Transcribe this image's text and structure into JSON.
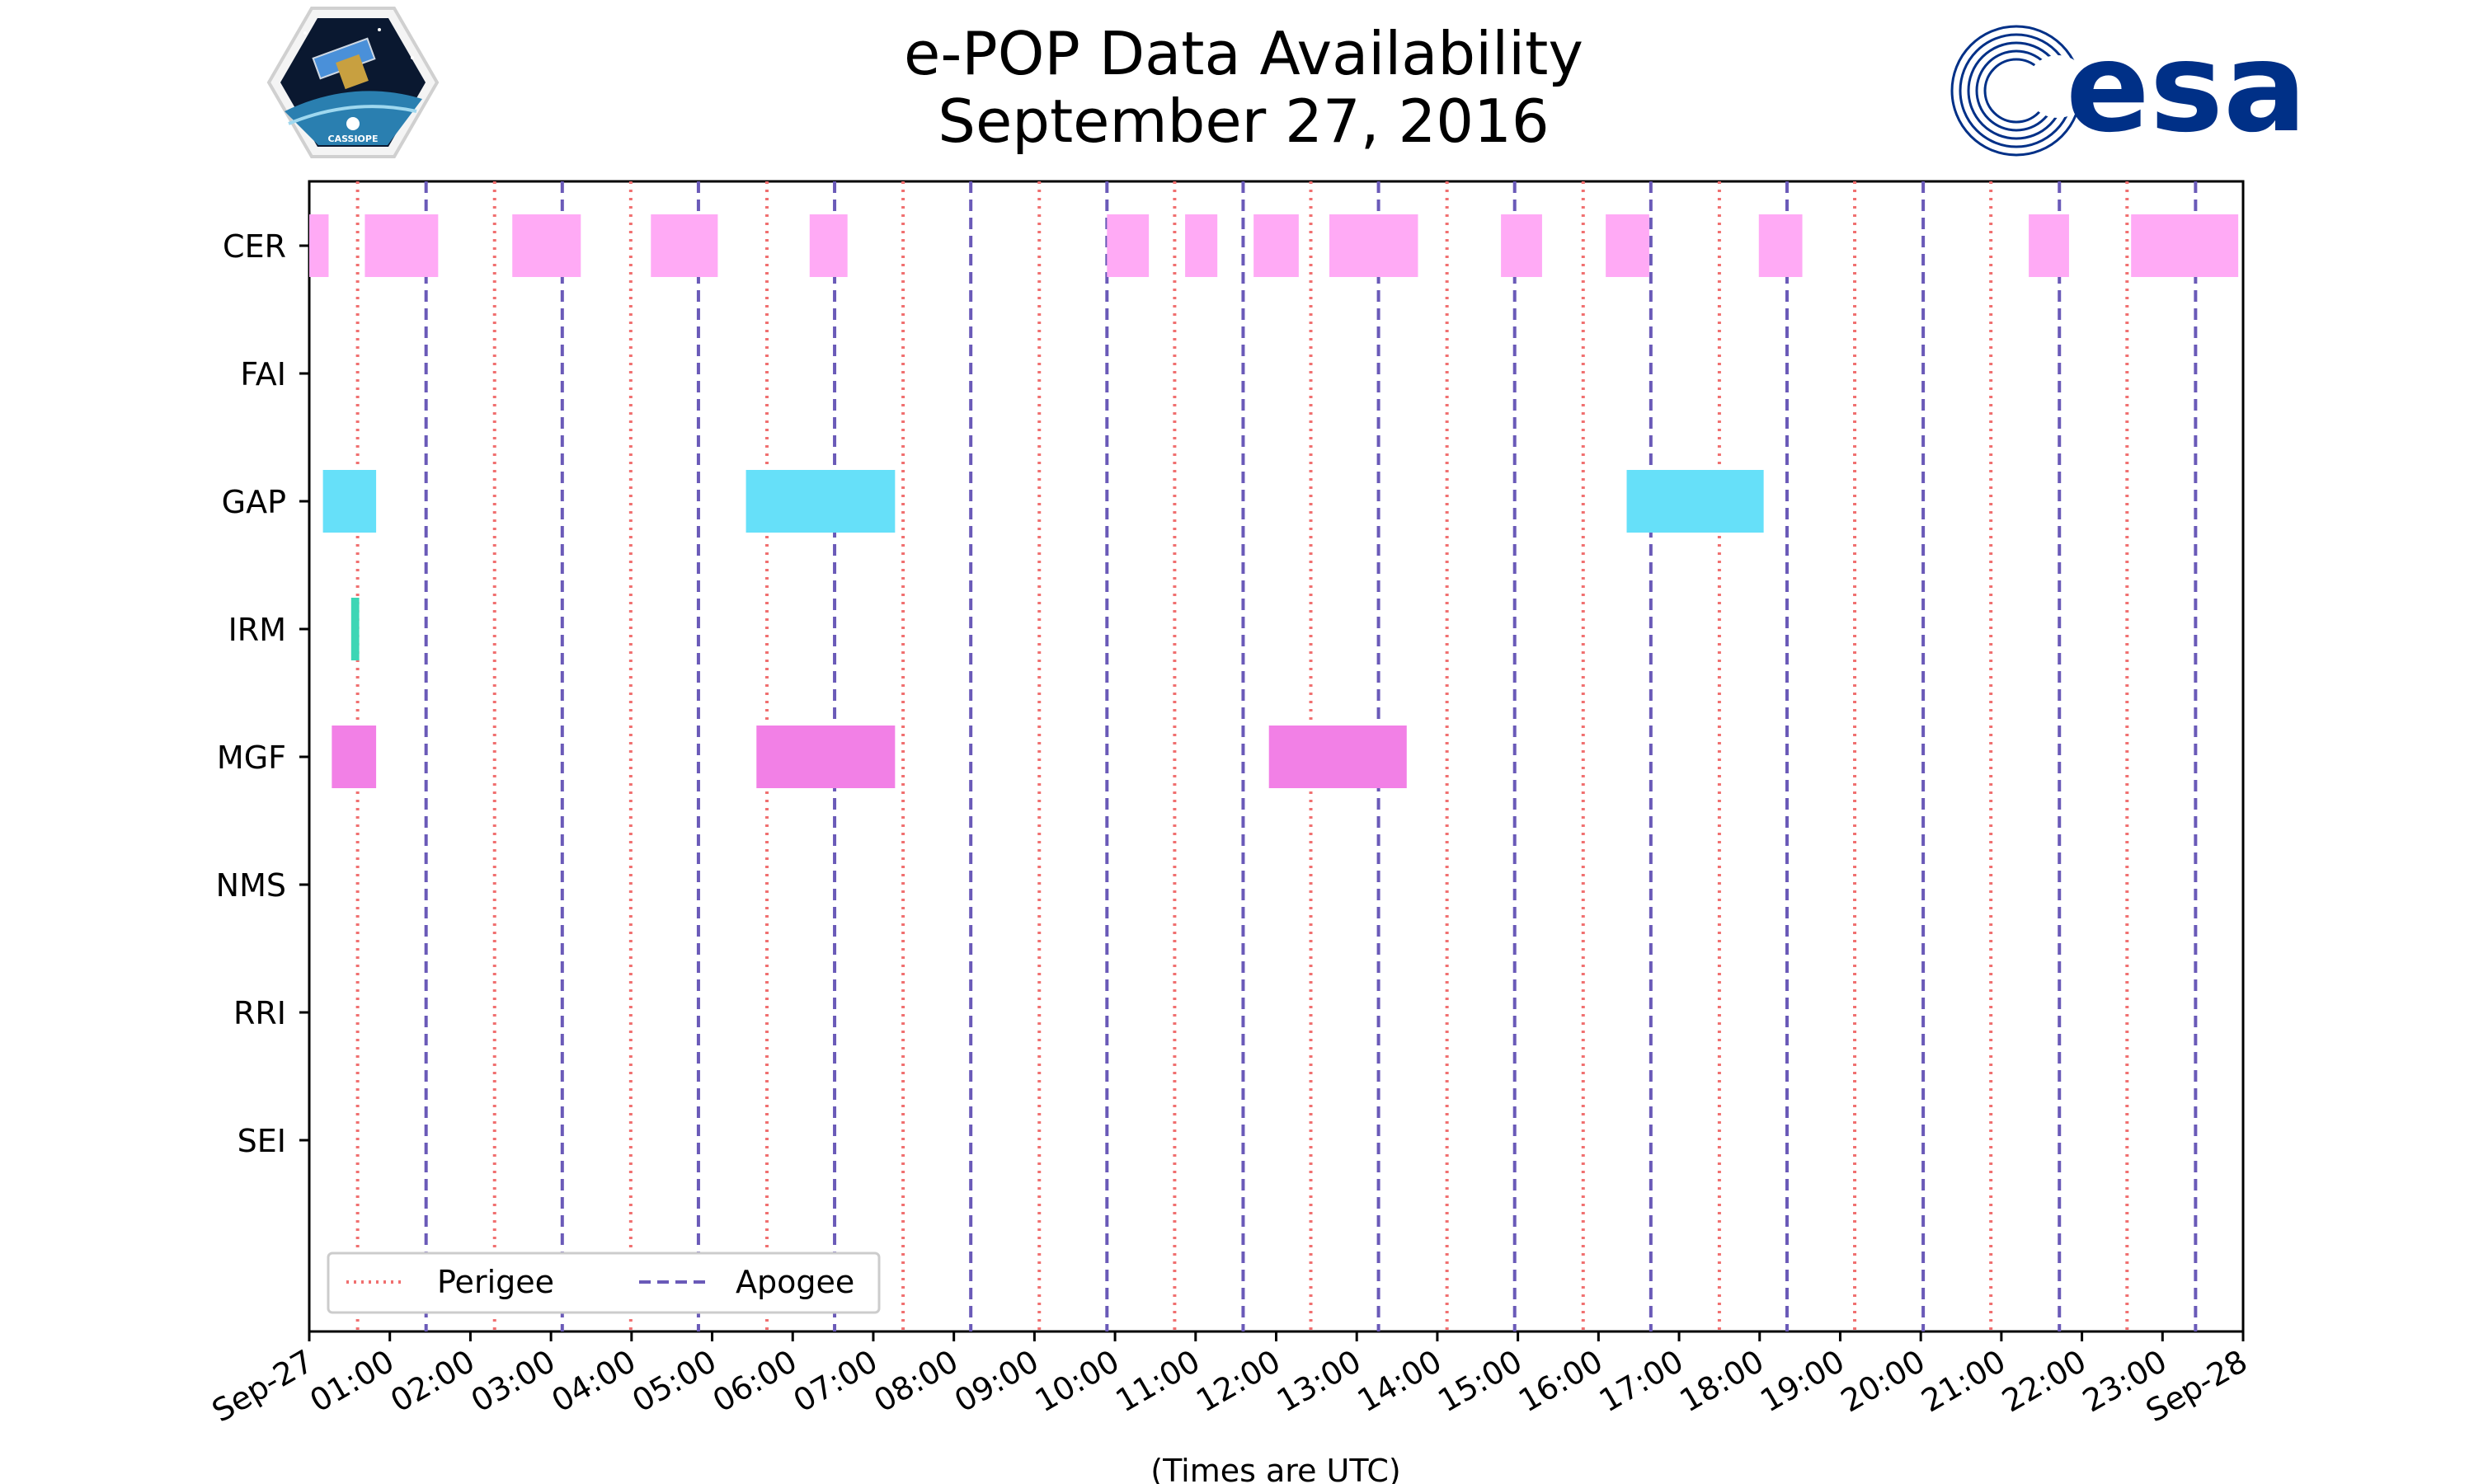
{
  "chart_data": {
    "type": "timeline",
    "title": [
      "e-POP Data Availability",
      "September 27, 2016"
    ],
    "xlabel": "(Times are UTC)",
    "x_unit": "hours (UTC)",
    "xlim": [
      0,
      24
    ],
    "x_ticks": [
      {
        "value": 0,
        "label": "Sep-27"
      },
      {
        "value": 1,
        "label": "01:00"
      },
      {
        "value": 2,
        "label": "02:00"
      },
      {
        "value": 3,
        "label": "03:00"
      },
      {
        "value": 4,
        "label": "04:00"
      },
      {
        "value": 5,
        "label": "05:00"
      },
      {
        "value": 6,
        "label": "06:00"
      },
      {
        "value": 7,
        "label": "07:00"
      },
      {
        "value": 8,
        "label": "08:00"
      },
      {
        "value": 9,
        "label": "09:00"
      },
      {
        "value": 10,
        "label": "10:00"
      },
      {
        "value": 11,
        "label": "11:00"
      },
      {
        "value": 12,
        "label": "12:00"
      },
      {
        "value": 13,
        "label": "13:00"
      },
      {
        "value": 14,
        "label": "14:00"
      },
      {
        "value": 15,
        "label": "15:00"
      },
      {
        "value": 16,
        "label": "16:00"
      },
      {
        "value": 17,
        "label": "17:00"
      },
      {
        "value": 18,
        "label": "18:00"
      },
      {
        "value": 19,
        "label": "19:00"
      },
      {
        "value": 20,
        "label": "20:00"
      },
      {
        "value": 21,
        "label": "21:00"
      },
      {
        "value": 22,
        "label": "22:00"
      },
      {
        "value": 23,
        "label": "23:00"
      },
      {
        "value": 24,
        "label": "Sep-28"
      }
    ],
    "instruments": [
      "CER",
      "FAI",
      "GAP",
      "IRM",
      "MGF",
      "NMS",
      "RRI",
      "SEI"
    ],
    "series": [
      {
        "name": "CER",
        "color": "#ffaaf5",
        "intervals": [
          [
            0.0,
            0.24
          ],
          [
            0.69,
            1.6
          ],
          [
            2.52,
            3.37
          ],
          [
            4.24,
            5.07
          ],
          [
            6.21,
            6.68
          ],
          [
            9.9,
            10.42
          ],
          [
            10.87,
            11.27
          ],
          [
            11.72,
            12.28
          ],
          [
            12.66,
            13.76
          ],
          [
            14.79,
            15.3
          ],
          [
            16.09,
            16.63
          ],
          [
            17.99,
            18.53
          ],
          [
            21.34,
            21.84
          ],
          [
            22.61,
            23.94
          ]
        ]
      },
      {
        "name": "FAI",
        "color": "#888888",
        "intervals": []
      },
      {
        "name": "GAP",
        "color": "#66e0f9",
        "intervals": [
          [
            0.17,
            0.83
          ],
          [
            5.42,
            7.27
          ],
          [
            16.35,
            18.05
          ]
        ]
      },
      {
        "name": "IRM",
        "color": "#3dd6b5",
        "intervals": [
          [
            0.52,
            0.62
          ]
        ]
      },
      {
        "name": "MGF",
        "color": "#f280e6",
        "intervals": [
          [
            0.28,
            0.83
          ],
          [
            5.55,
            7.27
          ],
          [
            11.91,
            13.62
          ]
        ]
      },
      {
        "name": "NMS",
        "color": "#888888",
        "intervals": []
      },
      {
        "name": "RRI",
        "color": "#888888",
        "intervals": []
      },
      {
        "name": "SEI",
        "color": "#888888",
        "intervals": []
      }
    ],
    "perigee_times": [
      0.6,
      2.3,
      3.99,
      5.68,
      7.37,
      9.06,
      10.74,
      12.43,
      14.12,
      15.81,
      17.5,
      19.18,
      20.87,
      22.56
    ],
    "apogee_times": [
      1.45,
      3.14,
      4.83,
      6.52,
      8.21,
      9.9,
      11.59,
      13.27,
      14.96,
      16.65,
      18.34,
      20.03,
      21.72,
      23.41
    ],
    "perigee_color": "#f07070",
    "apogee_color": "#6a5ab8",
    "legend": [
      {
        "label": "Perigee",
        "style": "dotted"
      },
      {
        "label": "Apogee",
        "style": "dashed"
      }
    ],
    "legend_position": "lower-left"
  },
  "logos": {
    "left": {
      "name": "CASSIOPE",
      "label": "CASSIOPE"
    },
    "right": {
      "name": "esa",
      "label": "esa",
      "color": "#003087"
    }
  }
}
